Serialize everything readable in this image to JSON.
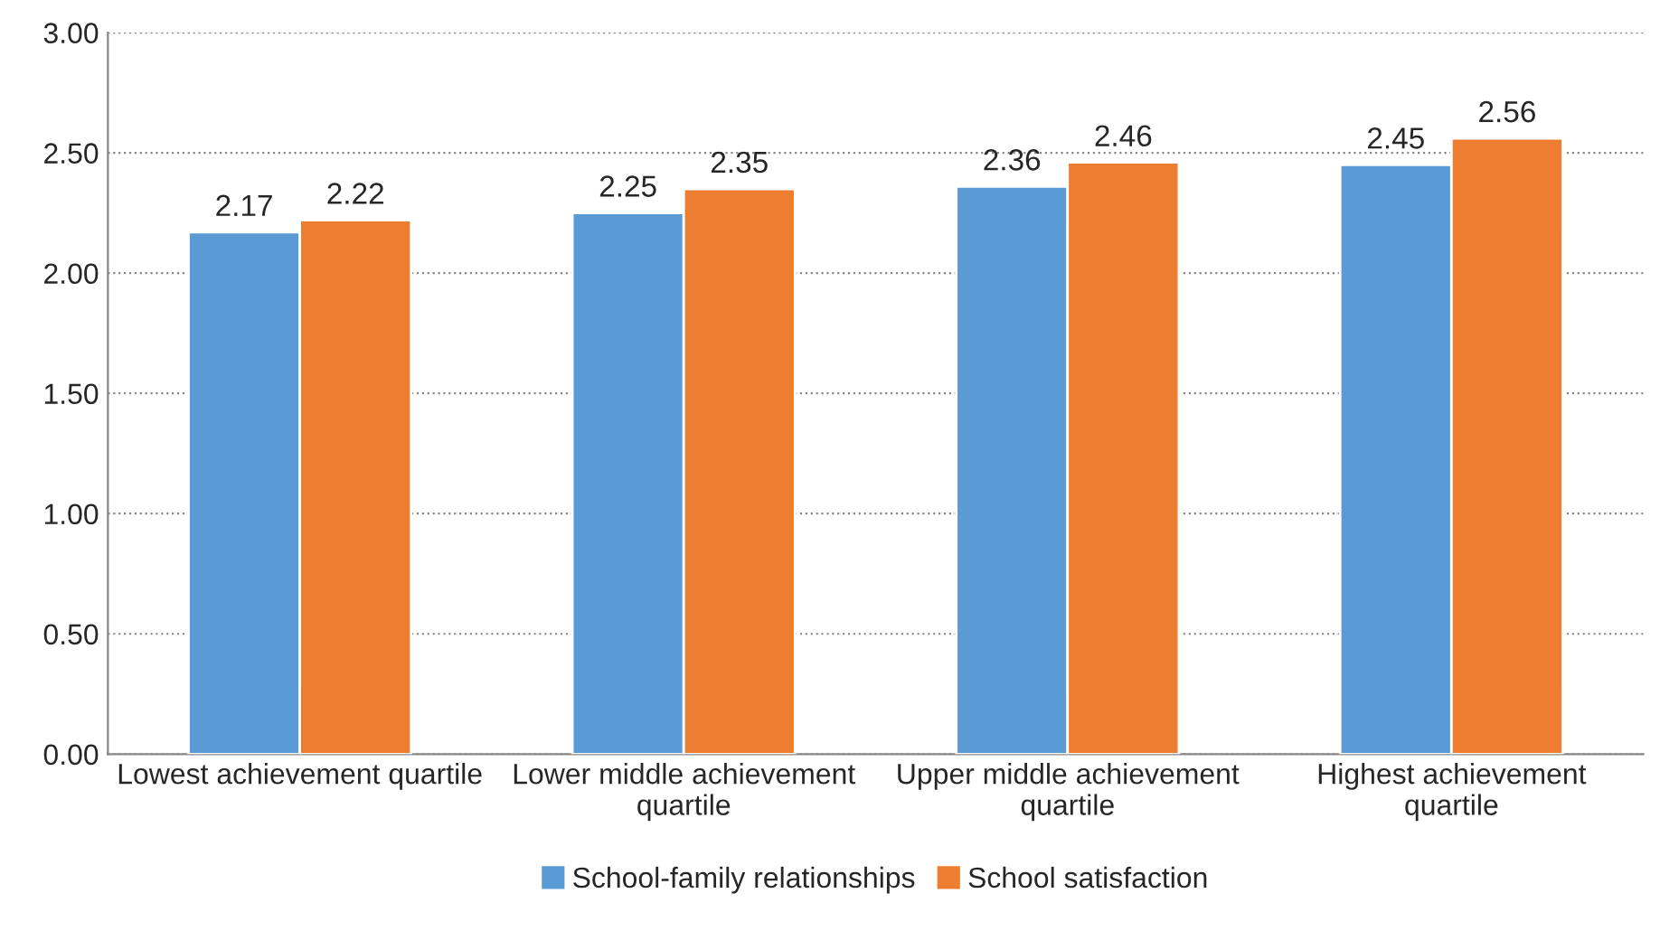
{
  "chart_data": {
    "type": "bar",
    "categories": [
      "Lowest achievement quartile",
      "Lower middle achievement quartile",
      "Upper middle achievement quartile",
      "Highest achievement quartile"
    ],
    "series": [
      {
        "name": "School-family relationships",
        "color": "#5b9bd5",
        "values": [
          2.17,
          2.25,
          2.36,
          2.45
        ]
      },
      {
        "name": "School satisfaction",
        "color": "#ed7d31",
        "values": [
          2.22,
          2.35,
          2.46,
          2.56
        ]
      }
    ],
    "ylim": [
      0,
      3
    ],
    "yticks": [
      {
        "value": 0,
        "label": "0.00"
      },
      {
        "value": 0.5,
        "label": "0.50"
      },
      {
        "value": 1,
        "label": "1.00"
      },
      {
        "value": 1.5,
        "label": "1.50"
      },
      {
        "value": 2,
        "label": "2.00"
      },
      {
        "value": 2.5,
        "label": "2.50"
      },
      {
        "value": 3,
        "label": "3.00"
      }
    ],
    "grid": "y",
    "legend": "bottom",
    "data_labels": true
  }
}
